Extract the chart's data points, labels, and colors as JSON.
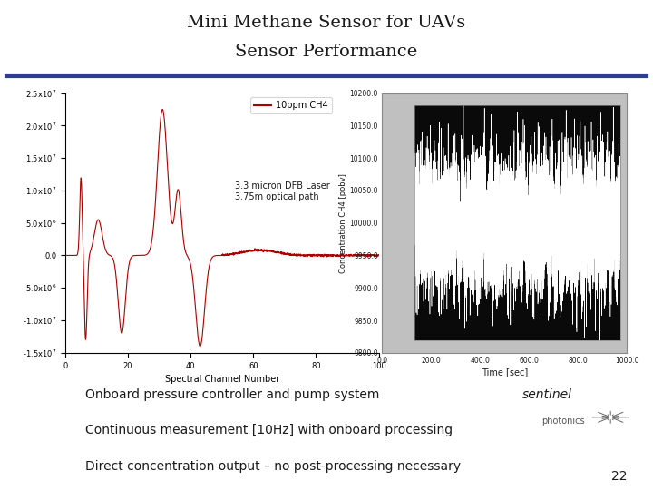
{
  "title_line1": "Mini Methane Sensor for UAVs",
  "title_line2": "Sensor Performance",
  "title_color": "#1a1a1a",
  "title_fontsize": 14,
  "divider_color": "#2e3d8f",
  "bg_color": "#ffffff",
  "bullet_lines": [
    "Onboard pressure controller and pump system",
    "Continuous measurement [10Hz] with onboard processing",
    "Direct concentration output – no post-processing necessary"
  ],
  "bullet_fontsize": 10,
  "page_number": "22",
  "left_plot": {
    "legend_label": "10ppm CH4",
    "annotation": "3.3 micron DFB Laser\n3.75m optical path",
    "xlabel": "Spectral Channel Number",
    "line_color": "#aa0000",
    "ylim": [
      -15000000.0,
      25000000.0
    ],
    "xlim": [
      0,
      100
    ],
    "yticks": [
      -15000000.0,
      -10000000.0,
      -5000000.0,
      0.0,
      5000000.0,
      10000000.0,
      15000000.0,
      20000000.0,
      25000000.0
    ]
  },
  "right_plot": {
    "ylabel": "Concentration CH4 [pobv]",
    "xlabel": "Time [sec]",
    "ylim": [
      9800.0,
      10200.0
    ],
    "xlim": [
      0.0,
      1000.0
    ],
    "outer_bg": "#c0c0c0",
    "inner_bg": "#0a0a0a",
    "grid_color": "#888800",
    "line_color": "#ffffff",
    "yticks": [
      9800.0,
      9850.0,
      9900.0,
      9950.0,
      10000.0,
      10050.0,
      10100.0,
      10150.0,
      10200.0
    ],
    "xticks": [
      0.0,
      200.0,
      400.0,
      600.0,
      800.0,
      1000.0
    ]
  },
  "sentinel_color": "#1a1a1a",
  "photonics_color": "#555555"
}
